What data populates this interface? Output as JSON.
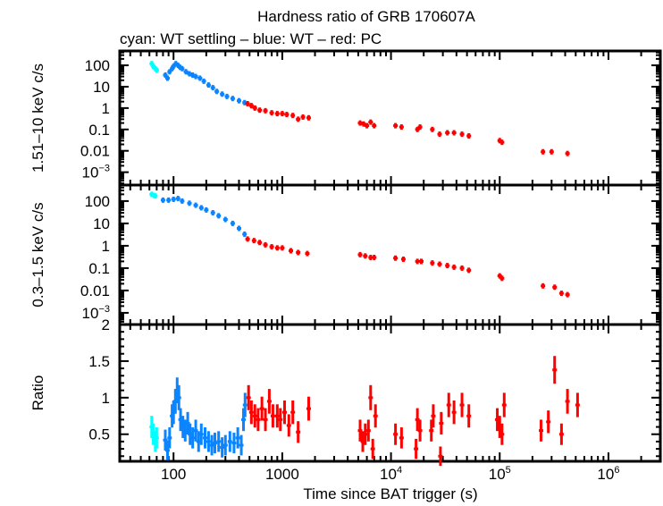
{
  "title": "Hardness ratio of GRB 170607A",
  "subtitle": "cyan: WT settling – blue: WT – red: PC",
  "xlabel": "Time since BAT trigger (s)",
  "colors": {
    "WT settling": "#00ffff",
    "WT": "#0a84ff",
    "PC": "#ff0000"
  },
  "chart_data": [
    {
      "type": "scatter",
      "ylabel": "1.51–10 keV c/s",
      "xscale": "log",
      "yscale": "log",
      "xlim": [
        32,
        3000000
      ],
      "ylim": [
        0.00025,
        470
      ],
      "xticks": [
        "100",
        "1000",
        "10^4",
        "10^5",
        "10^6"
      ],
      "yticks": [
        "100",
        "10",
        "1",
        "0.1",
        "0.01",
        "10^-3"
      ],
      "series": [
        {
          "color": "cyan",
          "points": [
            [
              63,
              120
            ],
            [
              65,
              90
            ],
            [
              68,
              70
            ],
            [
              70,
              60
            ]
          ]
        },
        {
          "color": "blue",
          "points": [
            [
              84,
              35
            ],
            [
              88,
              25
            ],
            [
              92,
              50
            ],
            [
              97,
              70
            ],
            [
              100,
              90
            ],
            [
              105,
              120
            ],
            [
              110,
              100
            ],
            [
              115,
              80
            ],
            [
              120,
              70
            ],
            [
              130,
              50
            ],
            [
              140,
              40
            ],
            [
              150,
              35
            ],
            [
              160,
              30
            ],
            [
              175,
              25
            ],
            [
              190,
              18
            ],
            [
              210,
              12
            ],
            [
              230,
              9
            ],
            [
              250,
              6
            ],
            [
              280,
              4.5
            ],
            [
              310,
              3.5
            ],
            [
              350,
              2.8
            ],
            [
              400,
              2.2
            ],
            [
              450,
              1.8
            ]
          ]
        },
        {
          "color": "red",
          "points": [
            [
              480,
              1.6
            ],
            [
              520,
              1.3
            ],
            [
              560,
              1.0
            ],
            [
              620,
              0.8
            ],
            [
              700,
              0.75
            ],
            [
              800,
              0.6
            ],
            [
              900,
              0.55
            ],
            [
              1000,
              0.55
            ],
            [
              1100,
              0.5
            ],
            [
              1250,
              0.45
            ],
            [
              1400,
              0.3
            ],
            [
              1550,
              0.38
            ],
            [
              1750,
              0.35
            ],
            [
              5200,
              0.2
            ],
            [
              5600,
              0.18
            ],
            [
              6000,
              0.15
            ],
            [
              6500,
              0.22
            ],
            [
              7000,
              0.15
            ],
            [
              11000,
              0.15
            ],
            [
              12500,
              0.13
            ],
            [
              17500,
              0.1
            ],
            [
              18500,
              0.13
            ],
            [
              24000,
              0.1
            ],
            [
              28000,
              0.06
            ],
            [
              33000,
              0.07
            ],
            [
              38000,
              0.07
            ],
            [
              45000,
              0.06
            ],
            [
              52000,
              0.05
            ],
            [
              100000,
              0.03
            ],
            [
              105000,
              0.025
            ],
            [
              250000,
              0.009
            ],
            [
              300000,
              0.009
            ],
            [
              420000,
              0.0075
            ]
          ]
        }
      ]
    },
    {
      "type": "scatter",
      "ylabel": "0.3–1.5 keV c/s",
      "xscale": "log",
      "yscale": "log",
      "xlim": [
        32,
        3000000
      ],
      "ylim": [
        0.0003,
        520
      ],
      "xticks": [
        "100",
        "1000",
        "10^4",
        "10^5",
        "10^6"
      ],
      "yticks": [
        "100",
        "10",
        "1",
        "0.1",
        "0.01",
        "10^-3"
      ],
      "series": [
        {
          "color": "cyan",
          "points": [
            [
              63,
              200
            ],
            [
              66,
              180
            ],
            [
              68,
              170
            ]
          ]
        },
        {
          "color": "blue",
          "points": [
            [
              80,
              110
            ],
            [
              90,
              110
            ],
            [
              100,
              120
            ],
            [
              110,
              130
            ],
            [
              120,
              100
            ],
            [
              140,
              80
            ],
            [
              160,
              65
            ],
            [
              180,
              50
            ],
            [
              200,
              40
            ],
            [
              230,
              30
            ],
            [
              260,
              22
            ],
            [
              300,
              15
            ],
            [
              350,
              10
            ],
            [
              400,
              6
            ],
            [
              450,
              3.3
            ]
          ]
        },
        {
          "color": "red",
          "points": [
            [
              480,
              2
            ],
            [
              550,
              1.7
            ],
            [
              620,
              1.4
            ],
            [
              700,
              1.1
            ],
            [
              800,
              0.9
            ],
            [
              900,
              0.8
            ],
            [
              1000,
              0.8
            ],
            [
              1200,
              0.6
            ],
            [
              1400,
              0.5
            ],
            [
              1700,
              0.45
            ],
            [
              5200,
              0.4
            ],
            [
              5800,
              0.35
            ],
            [
              6500,
              0.3
            ],
            [
              7000,
              0.3
            ],
            [
              11000,
              0.28
            ],
            [
              13000,
              0.25
            ],
            [
              17500,
              0.2
            ],
            [
              19000,
              0.2
            ],
            [
              24000,
              0.17
            ],
            [
              28000,
              0.15
            ],
            [
              33000,
              0.13
            ],
            [
              38000,
              0.11
            ],
            [
              45000,
              0.1
            ],
            [
              52000,
              0.08
            ],
            [
              100000,
              0.045
            ],
            [
              105000,
              0.035
            ],
            [
              250000,
              0.016
            ],
            [
              320000,
              0.014
            ],
            [
              370000,
              0.0075
            ],
            [
              420000,
              0.0065
            ]
          ]
        }
      ]
    },
    {
      "type": "scatter",
      "ylabel": "Ratio",
      "xscale": "log",
      "yscale": "linear",
      "xlim": [
        32,
        3000000
      ],
      "ylim": [
        0.13,
        2
      ],
      "xticks": [
        "100",
        "1000",
        "10^4",
        "10^5",
        "10^6"
      ],
      "yticks": [
        "2",
        "1.5",
        "1",
        "0.5"
      ],
      "series": [
        {
          "color": "cyan",
          "points": [
            [
              63,
              0.6
            ],
            [
              65,
              0.5
            ],
            [
              68,
              0.4
            ],
            [
              70,
              0.45
            ]
          ]
        },
        {
          "color": "blue",
          "points": [
            [
              84,
              0.42
            ],
            [
              88,
              0.28
            ],
            [
              92,
              0.45
            ],
            [
              97,
              0.75
            ],
            [
              100,
              0.8
            ],
            [
              104,
              0.95
            ],
            [
              108,
              1.1
            ],
            [
              112,
              1.0
            ],
            [
              116,
              0.7
            ],
            [
              122,
              0.6
            ],
            [
              128,
              0.55
            ],
            [
              135,
              0.65
            ],
            [
              142,
              0.5
            ],
            [
              150,
              0.45
            ],
            [
              160,
              0.55
            ],
            [
              170,
              0.4
            ],
            [
              180,
              0.5
            ],
            [
              195,
              0.45
            ],
            [
              210,
              0.4
            ],
            [
              225,
              0.35
            ],
            [
              240,
              0.38
            ],
            [
              260,
              0.4
            ],
            [
              280,
              0.32
            ],
            [
              300,
              0.35
            ],
            [
              330,
              0.4
            ],
            [
              360,
              0.38
            ],
            [
              390,
              0.45
            ],
            [
              420,
              0.35
            ],
            [
              440,
              0.7
            ],
            [
              455,
              0.9
            ]
          ]
        },
        {
          "color": "red",
          "points": [
            [
              490,
              1.0
            ],
            [
              520,
              0.8
            ],
            [
              560,
              0.75
            ],
            [
              600,
              0.7
            ],
            [
              650,
              0.85
            ],
            [
              700,
              0.7
            ],
            [
              760,
              0.95
            ],
            [
              820,
              0.75
            ],
            [
              900,
              0.75
            ],
            [
              960,
              0.7
            ],
            [
              1050,
              0.8
            ],
            [
              1150,
              0.62
            ],
            [
              1250,
              0.8
            ],
            [
              1400,
              0.53
            ],
            [
              1750,
              0.85
            ],
            [
              5200,
              0.55
            ],
            [
              5500,
              0.4
            ],
            [
              5800,
              0.5
            ],
            [
              6200,
              0.55
            ],
            [
              6500,
              1.0
            ],
            [
              6800,
              0.3
            ],
            [
              7200,
              0.75
            ],
            [
              11000,
              0.5
            ],
            [
              12500,
              0.45
            ],
            [
              17000,
              0.3
            ],
            [
              17500,
              0.7
            ],
            [
              18500,
              0.55
            ],
            [
              23500,
              0.55
            ],
            [
              24500,
              0.75
            ],
            [
              28500,
              0.2
            ],
            [
              29000,
              0.65
            ],
            [
              34000,
              0.9
            ],
            [
              38000,
              0.8
            ],
            [
              45000,
              0.9
            ],
            [
              52000,
              0.75
            ],
            [
              95000,
              0.7
            ],
            [
              100000,
              0.6
            ],
            [
              105000,
              0.5
            ],
            [
              110000,
              0.9
            ],
            [
              240000,
              0.55
            ],
            [
              280000,
              0.67
            ],
            [
              320000,
              1.38
            ],
            [
              370000,
              0.5
            ],
            [
              420000,
              0.95
            ],
            [
              520000,
              0.9
            ]
          ]
        }
      ]
    }
  ]
}
